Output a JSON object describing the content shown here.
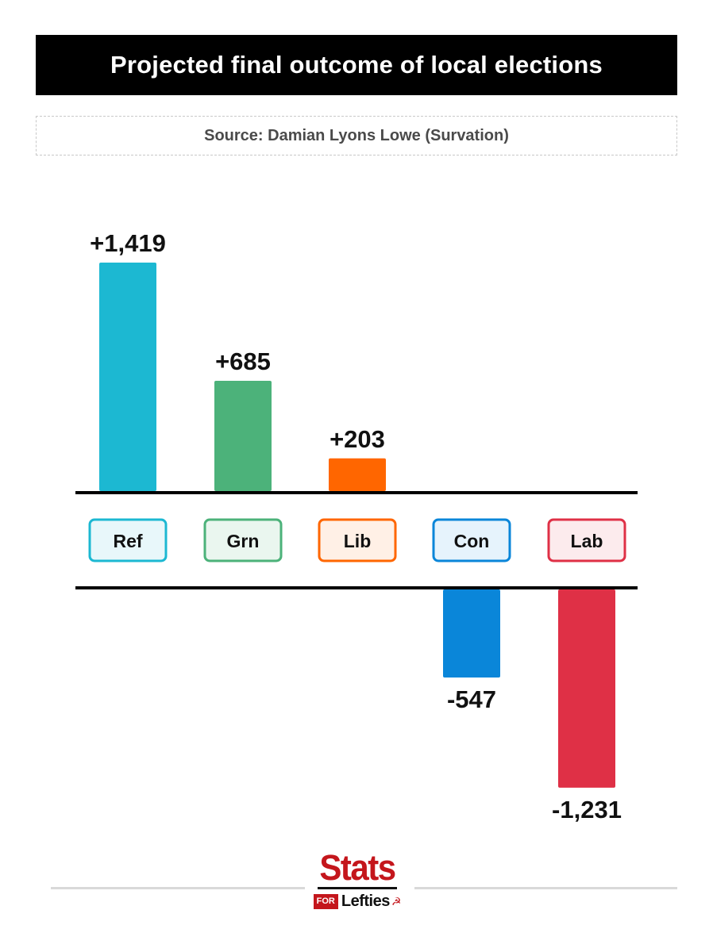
{
  "chart_data": {
    "type": "bar",
    "title": "Projected final outcome of local elections",
    "subtitle": "Source: Damian Lyons Lowe (Survation)",
    "categories": [
      "Ref",
      "Grn",
      "Lib",
      "Con",
      "Lab"
    ],
    "values": [
      1419,
      685,
      203,
      -547,
      -1231
    ],
    "value_labels": [
      "+1,419",
      "+685",
      "+203",
      "-547",
      "-1,231"
    ],
    "colors": [
      "#1cb8d2",
      "#4cb27a",
      "#ff6600",
      "#0a86d9",
      "#df3046"
    ],
    "label_box_fills": [
      "#e8f7fa",
      "#eaf6ef",
      "#fff0e6",
      "#e6f3fc",
      "#fcebed"
    ],
    "grid": false,
    "legend": "none"
  },
  "branding": {
    "logo_top": "Stats",
    "logo_for": "FOR",
    "logo_bottom": "Lefties",
    "logo_mark": "☭"
  }
}
